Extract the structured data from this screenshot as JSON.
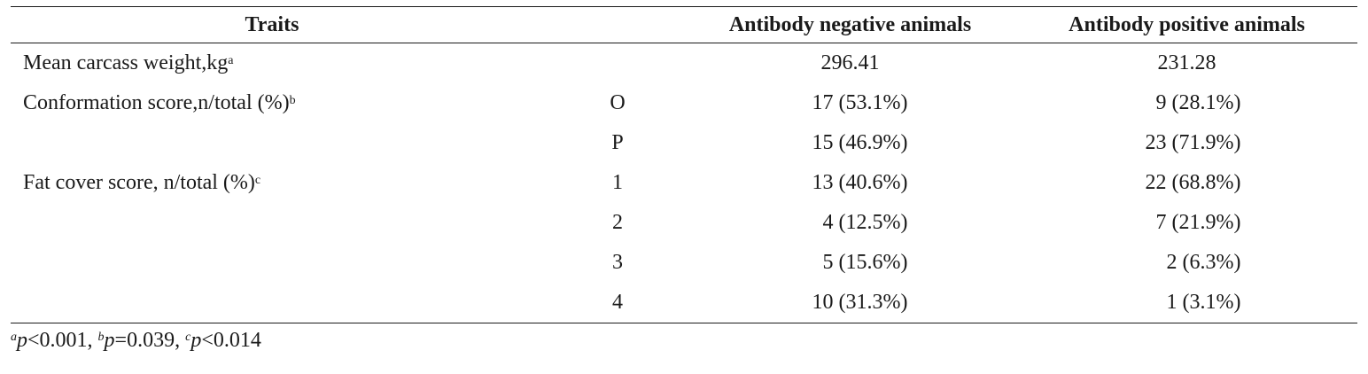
{
  "table": {
    "headers": {
      "traits": "Traits",
      "category": "",
      "negative": "Antibody negative animals",
      "positive": "Antibody positive animals"
    },
    "rows": [
      {
        "trait": "Mean carcass weight,kg",
        "trait_mark": "a",
        "category": "",
        "negative": "296.41",
        "positive": "231.28"
      },
      {
        "trait": "Conformation score,n/total (%)",
        "trait_mark": "b",
        "category": "O",
        "negative": "17 (53.1%)",
        "positive": "9 (28.1%)"
      },
      {
        "trait": "",
        "trait_mark": "",
        "category": "P",
        "negative": "15 (46.9%)",
        "positive": "23 (71.9%)"
      },
      {
        "trait": "Fat cover score, n/total (%)",
        "trait_mark": "c",
        "category": "1",
        "negative": "13 (40.6%)",
        "positive": "22 (68.8%)"
      },
      {
        "trait": "",
        "trait_mark": "",
        "category": "2",
        "negative": "4 (12.5%)",
        "positive": "7 (21.9%)"
      },
      {
        "trait": "",
        "trait_mark": "",
        "category": "3",
        "negative": "5 (15.6%)",
        "positive": "2 (6.3%)"
      },
      {
        "trait": "",
        "trait_mark": "",
        "category": "4",
        "negative": "10 (31.3%)",
        "positive": "1 (3.1%)"
      }
    ]
  },
  "footnote": {
    "a_mark": "a",
    "a_var": "p",
    "a_text": "<0.001, ",
    "b_mark": "b",
    "b_var": "p",
    "b_text": "=0.039, ",
    "c_mark": "c",
    "c_var": "p",
    "c_text": "<0.014"
  }
}
